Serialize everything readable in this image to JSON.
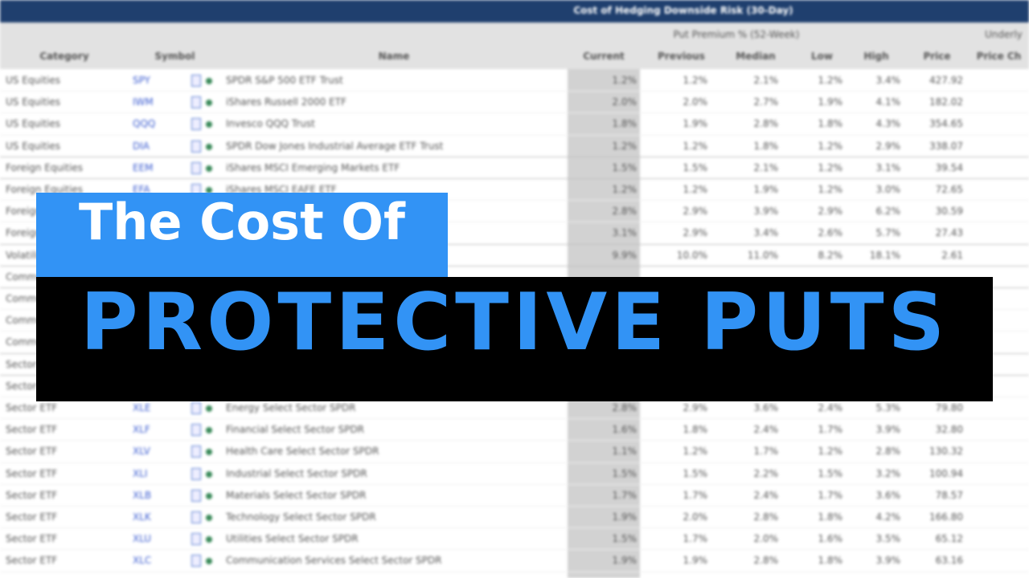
{
  "sheet": {
    "title": "Cost of Hedging Downside Risk (30-Day)",
    "group_headers": [
      "Put Premium % (52-Week)",
      "Underly"
    ],
    "columns": [
      "Category",
      "Symbol",
      "Name",
      "Current",
      "Previous",
      "Median",
      "Low",
      "High",
      "Price",
      "Price Ch"
    ],
    "rows": [
      [
        "US Equities",
        "SPY",
        "SPDR S&P 500 ETF Trust",
        "1.2%",
        "1.2%",
        "2.1%",
        "1.2%",
        "3.4%",
        "427.92"
      ],
      [
        "US Equities",
        "IWM",
        "iShares Russell 2000 ETF",
        "2.0%",
        "2.0%",
        "2.7%",
        "1.9%",
        "4.1%",
        "182.02"
      ],
      [
        "US Equities",
        "QQQ",
        "Invesco QQQ Trust",
        "1.8%",
        "1.9%",
        "2.8%",
        "1.8%",
        "4.3%",
        "354.65"
      ],
      [
        "US Equities",
        "DIA",
        "SPDR Dow Jones Industrial Average ETF Trust",
        "1.2%",
        "1.2%",
        "1.8%",
        "1.2%",
        "2.9%",
        "338.07"
      ],
      [
        "Foreign Equities",
        "EEM",
        "iShares MSCI Emerging Markets ETF",
        "1.5%",
        "1.5%",
        "2.1%",
        "1.2%",
        "3.1%",
        "39.54"
      ],
      [
        "Foreign Equities",
        "EFA",
        "iShares MSCI EAFE ETF",
        "1.2%",
        "1.2%",
        "1.9%",
        "1.2%",
        "3.0%",
        "72.65"
      ],
      [
        "Foreign Equities",
        "",
        "",
        "2.8%",
        "2.9%",
        "3.9%",
        "2.9%",
        "6.2%",
        "30.59"
      ],
      [
        "Foreign Equities",
        "",
        "",
        "3.1%",
        "2.9%",
        "3.4%",
        "2.6%",
        "5.7%",
        "27.43"
      ],
      [
        "Volatility",
        "",
        "",
        "9.9%",
        "10.0%",
        "11.0%",
        "8.2%",
        "18.1%",
        "2.61"
      ],
      [
        "Commodities"
      ],
      [
        "Commodities"
      ],
      [
        "Commodities"
      ],
      [
        "Commodities"
      ],
      [
        "Sector ETF"
      ],
      [
        "Sector ETF"
      ],
      [
        "Sector ETF",
        "XLE",
        "Energy Select Sector SPDR",
        "2.8%",
        "2.9%",
        "3.6%",
        "2.4%",
        "5.3%",
        "79.80"
      ],
      [
        "Sector ETF",
        "XLF",
        "Financial Select Sector SPDR",
        "1.6%",
        "1.8%",
        "2.4%",
        "1.7%",
        "3.9%",
        "32.80"
      ],
      [
        "Sector ETF",
        "XLV",
        "Health Care Select Sector SPDR",
        "1.1%",
        "1.2%",
        "1.7%",
        "1.2%",
        "2.8%",
        "130.32"
      ],
      [
        "Sector ETF",
        "XLI",
        "Industrial Select Sector SPDR",
        "1.5%",
        "1.5%",
        "2.2%",
        "1.5%",
        "3.2%",
        "100.94"
      ],
      [
        "Sector ETF",
        "XLB",
        "Materials Select Sector SPDR",
        "1.7%",
        "1.7%",
        "2.4%",
        "1.7%",
        "3.6%",
        "78.57"
      ],
      [
        "Sector ETF",
        "XLK",
        "Technology Select Sector SPDR",
        "1.9%",
        "2.0%",
        "2.8%",
        "1.8%",
        "4.2%",
        "166.80"
      ],
      [
        "Sector ETF",
        "XLU",
        "Utilities Select Sector SPDR",
        "1.5%",
        "1.7%",
        "2.0%",
        "1.6%",
        "3.5%",
        "65.12"
      ],
      [
        "Sector ETF",
        "XLC",
        "Communication Services Select Sector SPDR",
        "1.9%",
        "1.9%",
        "2.8%",
        "1.8%",
        "3.9%",
        "63.16"
      ]
    ]
  },
  "overlay": {
    "line1": "The Cost Of",
    "line2": "PROTECTIVE PUTS"
  }
}
